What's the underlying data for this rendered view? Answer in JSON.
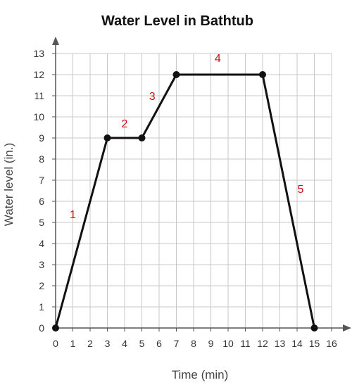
{
  "chart_data": {
    "type": "line",
    "title": "Water Level in Bathtub",
    "xlabel": "Time (min)",
    "ylabel": "Water level (in.)",
    "xlim": [
      0,
      16
    ],
    "ylim": [
      0,
      13
    ],
    "x_ticks": [
      0,
      1,
      2,
      3,
      4,
      5,
      6,
      7,
      8,
      9,
      10,
      11,
      12,
      13,
      14,
      15,
      16
    ],
    "y_ticks": [
      0,
      1,
      2,
      3,
      4,
      5,
      6,
      7,
      8,
      9,
      10,
      11,
      12,
      13
    ],
    "grid": true,
    "series": [
      {
        "points": [
          {
            "x": 0,
            "y": 0
          },
          {
            "x": 3,
            "y": 9
          },
          {
            "x": 5,
            "y": 9
          },
          {
            "x": 7,
            "y": 12
          },
          {
            "x": 12,
            "y": 12
          },
          {
            "x": 15,
            "y": 0
          }
        ]
      }
    ],
    "annotations": [
      {
        "text": "1",
        "x": 1,
        "y": 5.2
      },
      {
        "text": "2",
        "x": 4,
        "y": 9.5
      },
      {
        "text": "3",
        "x": 5.6,
        "y": 10.8
      },
      {
        "text": "4",
        "x": 9.4,
        "y": 12.6
      },
      {
        "text": "5",
        "x": 14.2,
        "y": 6.4
      }
    ],
    "colors": {
      "line": "#111111",
      "grid": "#c8c8c8",
      "axis": "#555555",
      "annotation": "#cc1111"
    }
  }
}
